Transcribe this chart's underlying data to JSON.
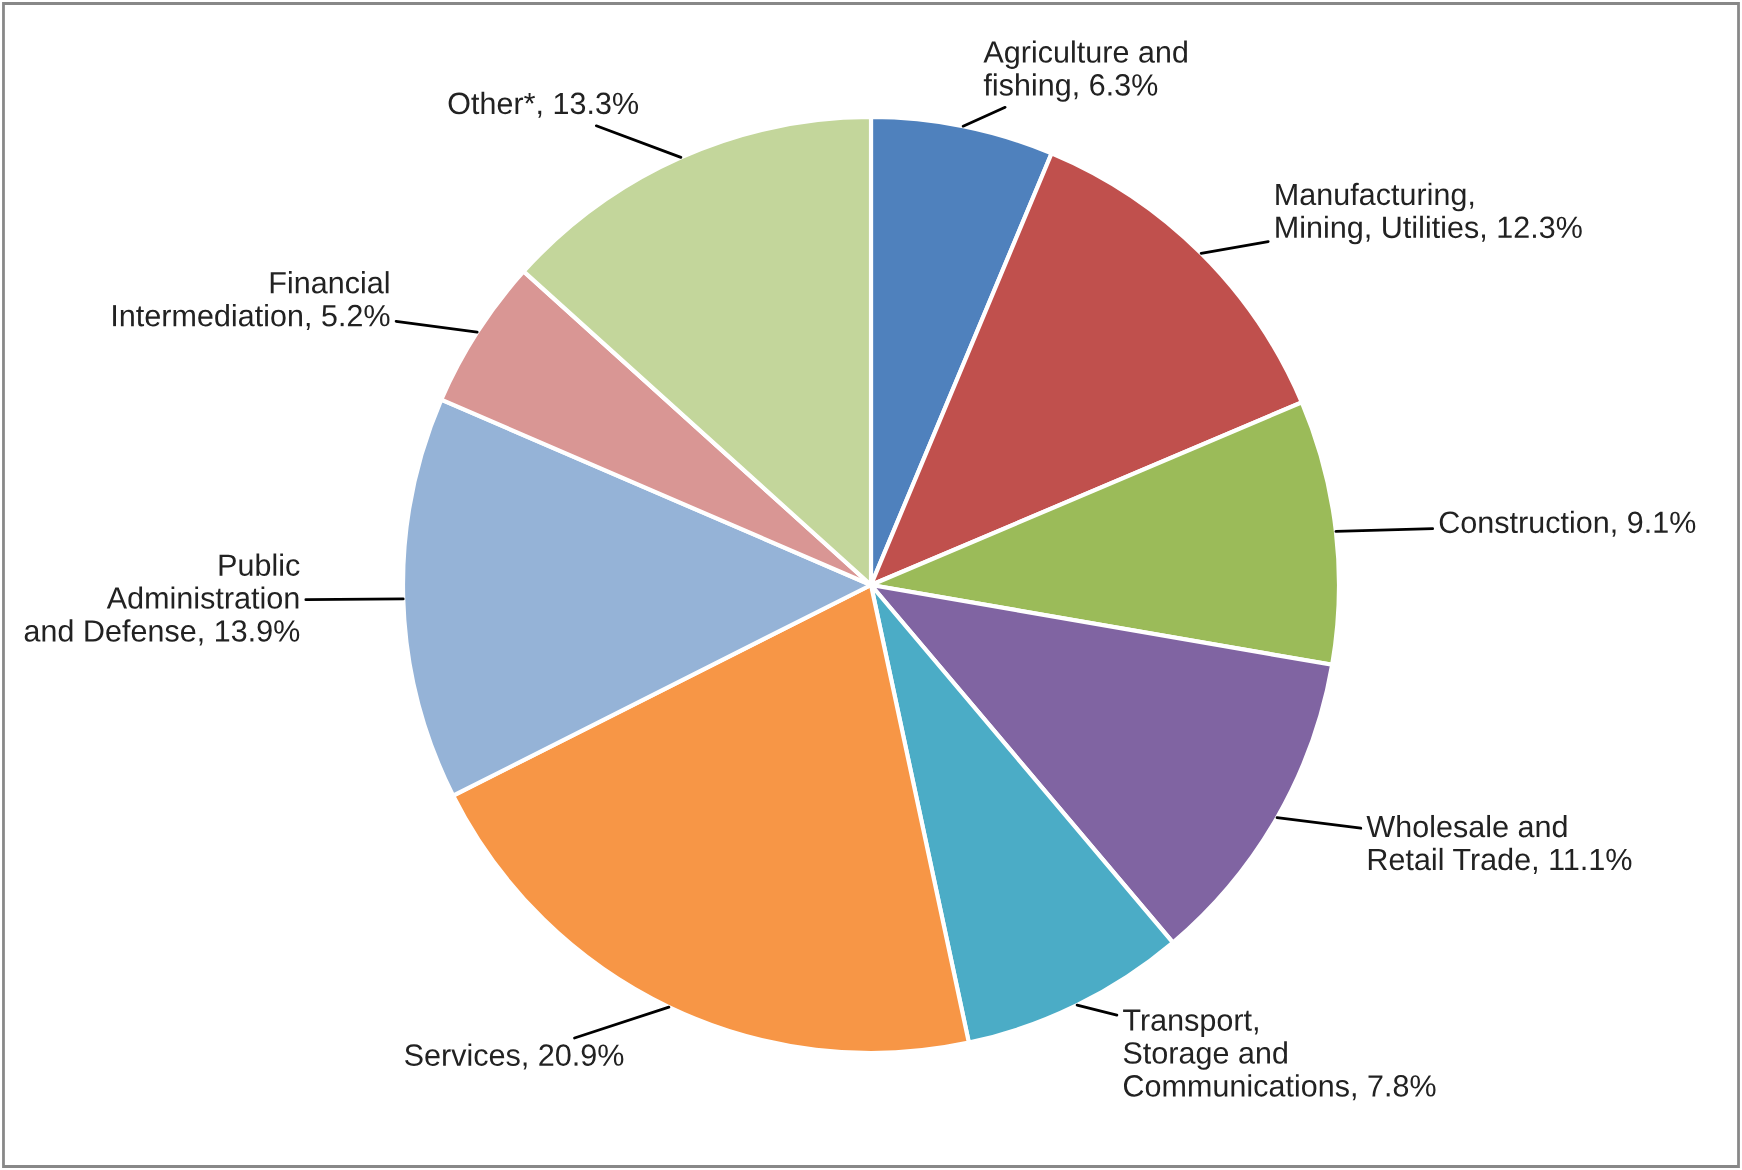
{
  "chart_data": {
    "type": "pie",
    "categories": [
      "Agriculture and\nfishing",
      "Manufacturing,\nMining, Utilities",
      "Construction",
      "Wholesale and\nRetail Trade",
      "Transport,\nStorage and\nCommunications",
      "Services",
      "Public\nAdministration\nand Defense",
      "Financial\nIntermediation",
      "Other*"
    ],
    "values": [
      6.3,
      12.3,
      9.1,
      11.1,
      7.8,
      20.9,
      13.9,
      5.2,
      13.3
    ],
    "value_labels": [
      "6.3%",
      "12.3%",
      "9.1%",
      "11.1%",
      "7.8%",
      "20.9%",
      "13.9%",
      "5.2%",
      "13.3%"
    ],
    "colors": [
      "#4f81bd",
      "#c0504d",
      "#9bbb59",
      "#8064a2",
      "#4bacc6",
      "#f79646",
      "#95b3d7",
      "#d99694",
      "#c3d69b"
    ],
    "legend": false
  }
}
